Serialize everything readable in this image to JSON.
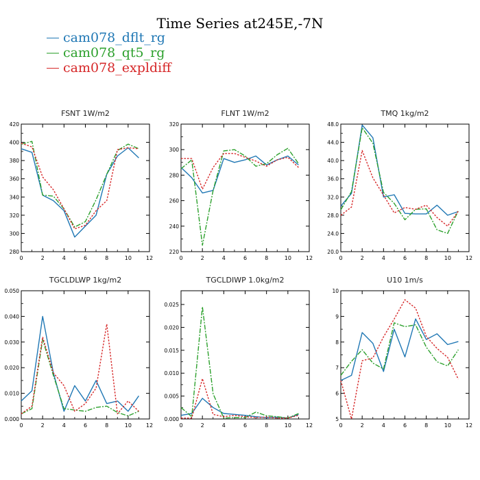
{
  "title": "Time Series at245E,-7N",
  "legend": [
    {
      "label": "cam078_dflt_rg",
      "color": "#1f77b4"
    },
    {
      "label": "cam078_qt5_rg",
      "color": "#2ca02c"
    },
    {
      "label": "cam078_expldiff",
      "color": "#d62728"
    }
  ],
  "chart_data": [
    {
      "type": "line",
      "title": "FSNT   1W/m2",
      "xlim": [
        0,
        12
      ],
      "xticks": [
        0,
        2,
        4,
        6,
        8,
        10,
        12
      ],
      "ylim": [
        280,
        420
      ],
      "yticks": [
        "280",
        "300",
        "320",
        "340",
        "360",
        "380",
        "400",
        "420"
      ],
      "x": [
        0,
        1,
        2,
        3,
        4,
        5,
        6,
        7,
        8,
        9,
        10,
        11
      ],
      "series": [
        {
          "name": "cam078_dflt_rg",
          "values": [
            393,
            389,
            342,
            336,
            325,
            296,
            308,
            320,
            365,
            385,
            394,
            383
          ]
        },
        {
          "name": "cam078_qt5_rg",
          "values": [
            398,
            401,
            342,
            341,
            327,
            307,
            313,
            337,
            365,
            391,
            398,
            393
          ]
        },
        {
          "name": "cam078_expldiff",
          "values": [
            399,
            395,
            362,
            348,
            327,
            305,
            309,
            325,
            336,
            392,
            394,
            393
          ]
        }
      ]
    },
    {
      "type": "line",
      "title": "FLNT   1W/m2",
      "xlim": [
        0,
        12
      ],
      "xticks": [
        0,
        2,
        4,
        6,
        8,
        10,
        12
      ],
      "ylim": [
        220,
        320
      ],
      "yticks": [
        "220",
        "240",
        "260",
        "280",
        "300",
        "320"
      ],
      "x": [
        0,
        1,
        2,
        3,
        4,
        5,
        6,
        7,
        8,
        9,
        10,
        11
      ],
      "series": [
        {
          "name": "cam078_dflt_rg",
          "values": [
            286,
            278,
            266,
            268,
            293,
            290,
            292,
            295,
            288,
            292,
            295,
            288
          ]
        },
        {
          "name": "cam078_qt5_rg",
          "values": [
            285,
            292,
            225,
            268,
            299,
            300,
            295,
            287,
            289,
            296,
            301,
            289
          ]
        },
        {
          "name": "cam078_expldiff",
          "values": [
            293,
            293,
            269,
            286,
            297,
            297,
            294,
            291,
            287,
            292,
            294,
            286
          ]
        }
      ]
    },
    {
      "type": "line",
      "title": "TMQ   1kg/m2",
      "xlim": [
        0,
        12
      ],
      "xticks": [
        0,
        2,
        4,
        6,
        8,
        10,
        12
      ],
      "ylim": [
        20,
        48
      ],
      "yticks": [
        "20.0",
        "24.0",
        "28.0",
        "32.0",
        "36.0",
        "40.0",
        "44.0",
        "48.0"
      ],
      "x": [
        0,
        1,
        2,
        3,
        4,
        5,
        6,
        7,
        8,
        9,
        10,
        11
      ],
      "series": [
        {
          "name": "cam078_dflt_rg",
          "values": [
            30.0,
            32.8,
            47.8,
            45.0,
            32.0,
            32.5,
            28.4,
            28.3,
            28.3,
            30.2,
            28.0,
            28.8
          ]
        },
        {
          "name": "cam078_qt5_rg",
          "values": [
            29.2,
            33.2,
            47.2,
            43.8,
            33.0,
            30.6,
            27.0,
            29.3,
            29.4,
            24.8,
            24.0,
            29.0
          ]
        },
        {
          "name": "cam078_expldiff",
          "values": [
            28.0,
            29.8,
            42.2,
            36.2,
            32.4,
            28.5,
            29.7,
            29.3,
            30.2,
            27.5,
            25.6,
            28.9
          ]
        }
      ]
    },
    {
      "type": "line",
      "title": "TGCLDLWP   1kg/m2",
      "xlim": [
        0,
        12
      ],
      "xticks": [
        0,
        2,
        4,
        6,
        8,
        10,
        12
      ],
      "ylim": [
        0,
        0.05
      ],
      "yticks": [
        "0.000",
        "0.010",
        "0.020",
        "0.030",
        "0.040",
        "0.050"
      ],
      "x": [
        0,
        1,
        2,
        3,
        4,
        5,
        6,
        7,
        8,
        9,
        10,
        11
      ],
      "series": [
        {
          "name": "cam078_dflt_rg",
          "values": [
            0.007,
            0.011,
            0.04,
            0.018,
            0.003,
            0.013,
            0.007,
            0.015,
            0.006,
            0.007,
            0.003,
            0.009
          ]
        },
        {
          "name": "cam078_qt5_rg",
          "values": [
            0.002,
            0.004,
            0.031,
            0.017,
            0.004,
            0.0035,
            0.003,
            0.0045,
            0.005,
            0.0025,
            0.0012,
            0.003
          ]
        },
        {
          "name": "cam078_expldiff",
          "values": [
            0.002,
            0.005,
            0.032,
            0.018,
            0.013,
            0.003,
            0.006,
            0.012,
            0.037,
            0.002,
            0.007,
            0.003
          ]
        }
      ]
    },
    {
      "type": "line",
      "title": "TGCLDIWP   1.0kg/m2",
      "xlim": [
        0,
        12
      ],
      "xticks": [
        0,
        2,
        4,
        6,
        8,
        10,
        12
      ],
      "ylim": [
        0,
        0.028
      ],
      "yticks": [
        "0.000",
        "0.005",
        "0.010",
        "0.015",
        "0.020",
        "0.025"
      ],
      "x": [
        0,
        1,
        2,
        3,
        4,
        5,
        6,
        7,
        8,
        9,
        10,
        11
      ],
      "series": [
        {
          "name": "cam078_dflt_rg",
          "values": [
            0.0008,
            0.0012,
            0.0045,
            0.0025,
            0.0012,
            0.001,
            0.0008,
            0.0005,
            0.0003,
            0.0004,
            0.0002,
            0.001
          ]
        },
        {
          "name": "cam078_qt5_rg",
          "values": [
            0.0025,
            0.0005,
            0.0245,
            0.0055,
            0.0002,
            0.0003,
            0.0003,
            0.0015,
            0.0007,
            0.0005,
            0.0002,
            0.0012
          ]
        },
        {
          "name": "cam078_expldiff",
          "values": [
            0.0002,
            0.0002,
            0.0088,
            0.001,
            0.0005,
            0.0008,
            0.0005,
            0.0003,
            0.0004,
            0.0002,
            0.0002,
            0.0008
          ]
        }
      ]
    },
    {
      "type": "line",
      "title": "U10   1m/s",
      "xlim": [
        0,
        12
      ],
      "xticks": [
        0,
        2,
        4,
        6,
        8,
        10,
        12
      ],
      "ylim": [
        5,
        10
      ],
      "yticks": [
        "5",
        "6",
        "7",
        "8",
        "9",
        "10"
      ],
      "x": [
        0,
        1,
        2,
        3,
        4,
        5,
        6,
        7,
        8,
        9,
        10,
        11
      ],
      "series": [
        {
          "name": "cam078_dflt_rg",
          "values": [
            6.5,
            6.7,
            8.37,
            7.95,
            6.85,
            8.5,
            7.42,
            8.9,
            8.1,
            8.32,
            7.9,
            8.02
          ]
        },
        {
          "name": "cam078_qt5_rg",
          "values": [
            6.7,
            7.25,
            7.7,
            7.18,
            6.95,
            8.75,
            8.6,
            8.67,
            7.8,
            7.23,
            7.07,
            7.7
          ]
        },
        {
          "name": "cam078_expldiff",
          "values": [
            6.5,
            5.0,
            7.27,
            7.38,
            8.2,
            8.9,
            9.65,
            9.32,
            8.22,
            7.75,
            7.4,
            6.55
          ]
        }
      ]
    }
  ]
}
